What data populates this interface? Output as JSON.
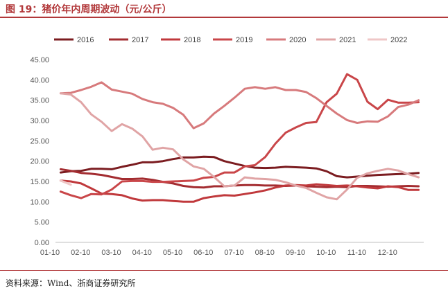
{
  "title": "图 19：猪价年内周期波动（元/公斤）",
  "source": "资料来源：Wind、浙商证券研究所",
  "chart_data": {
    "type": "line",
    "ylim": [
      0,
      45
    ],
    "yticks": [
      "0.00",
      "5.00",
      "10.00",
      "15.00",
      "20.00",
      "25.00",
      "30.00",
      "35.00",
      "40.00",
      "45.00"
    ],
    "xticks": [
      "01-10",
      "02-10",
      "03-10",
      "04-10",
      "05-10",
      "06-10",
      "07-10",
      "08-10",
      "09-10",
      "10-10",
      "11-10",
      "12-10"
    ],
    "legend_position": "top",
    "grid": false,
    "series": [
      {
        "name": "2016",
        "color": "#7b1c20",
        "values": [
          17.2,
          17.5,
          17.6,
          18.1,
          18.1,
          18.0,
          18.6,
          19.1,
          19.7,
          19.7,
          20.0,
          20.5,
          20.9,
          20.9,
          21.1,
          21.0,
          20.0,
          19.4,
          18.8,
          18.4,
          18.3,
          18.4,
          18.6,
          18.5,
          18.4,
          18.2,
          17.5,
          16.3,
          16.0,
          16.2,
          16.4,
          16.6,
          16.7,
          16.8,
          16.9,
          17.1
        ]
      },
      {
        "name": "2017",
        "color": "#a32c30",
        "values": [
          18.0,
          17.6,
          17.1,
          16.9,
          16.6,
          16.1,
          15.6,
          15.6,
          15.7,
          15.4,
          14.9,
          14.5,
          13.9,
          13.6,
          13.5,
          13.8,
          13.8,
          14.0,
          14.1,
          14.1,
          14.0,
          14.0,
          13.9,
          14.0,
          13.8,
          13.7,
          13.6,
          13.7,
          13.6,
          13.9,
          13.9,
          13.8,
          13.7,
          13.8,
          13.9,
          13.8
        ]
      },
      {
        "name": "2018",
        "color": "#c0393c",
        "values": [
          15.2,
          15.0,
          14.5,
          13.3,
          12.0,
          11.9,
          11.6,
          10.8,
          10.3,
          10.4,
          10.4,
          10.2,
          10.0,
          10.0,
          10.9,
          11.3,
          11.6,
          11.5,
          11.9,
          12.3,
          12.8,
          13.5,
          14.0,
          14.1,
          14.0,
          14.3,
          14.1,
          13.9,
          14.0,
          13.8,
          13.5,
          13.3,
          13.8,
          13.6,
          12.9,
          12.9
        ]
      },
      {
        "name": "2019",
        "color": "#c94649",
        "values": [
          12.5,
          11.6,
          10.9,
          11.9,
          11.8,
          13.0,
          15.0,
          15.1,
          15.1,
          14.9,
          14.9,
          15.0,
          15.1,
          15.2,
          15.9,
          16.1,
          17.2,
          17.2,
          18.7,
          19.0,
          21.0,
          24.3,
          27.0,
          28.3,
          29.4,
          29.6,
          34.5,
          36.6,
          41.4,
          40.0,
          34.6,
          32.8,
          35.1,
          34.4,
          34.4,
          34.5
        ]
      },
      {
        "name": "2020",
        "color": "#d77a7c",
        "values": [
          36.7,
          36.8,
          37.5,
          38.3,
          39.4,
          37.6,
          37.1,
          36.6,
          35.3,
          34.5,
          34.1,
          33.1,
          31.4,
          28.1,
          29.3,
          31.7,
          33.6,
          35.6,
          37.8,
          38.2,
          37.8,
          38.2,
          37.5,
          37.5,
          37.0,
          35.5,
          33.6,
          31.7,
          30.1,
          29.4,
          29.8,
          29.7,
          31.0,
          33.3,
          33.9,
          35.0
        ]
      },
      {
        "name": "2021",
        "color": "#e0a4a5",
        "values": [
          36.7,
          36.4,
          34.5,
          31.5,
          29.7,
          27.4,
          29.1,
          28.0,
          26.1,
          22.8,
          23.3,
          22.9,
          20.4,
          18.7,
          18.1,
          16.1,
          13.8,
          14.0,
          16.0,
          15.7,
          15.6,
          15.4,
          14.8,
          14.0,
          13.4,
          12.2,
          11.1,
          10.6,
          13.0,
          15.9,
          17.0,
          17.6,
          18.1,
          17.7,
          16.8,
          16.0
        ]
      },
      {
        "name": "2022",
        "color": "#efc7c7",
        "values": [
          15.2,
          14.2
        ]
      }
    ]
  }
}
